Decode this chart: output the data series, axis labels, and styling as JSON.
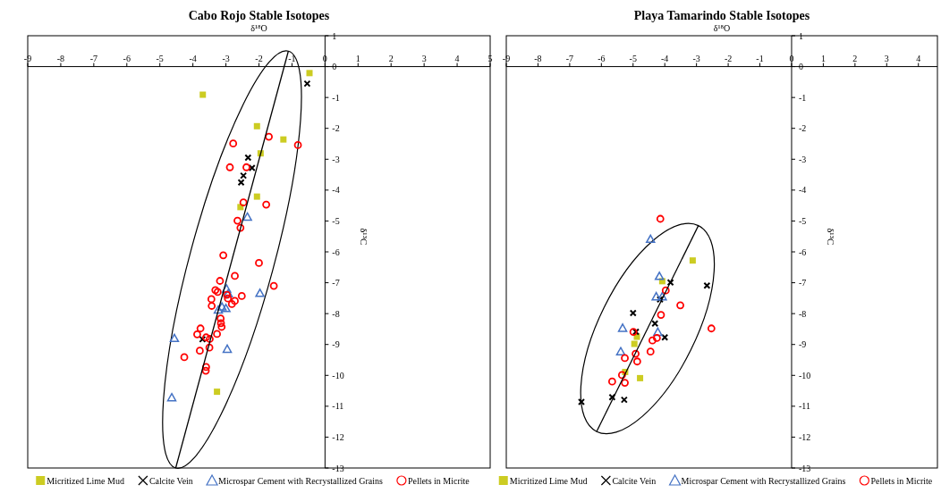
{
  "chart_data": [
    {
      "type": "scatter",
      "title": "Cabo Rojo Stable Isotopes",
      "xlabel": "δ¹⁸O",
      "ylabel": "δ¹³C",
      "xlim": [
        -9,
        5
      ],
      "ylim": [
        -13,
        1
      ],
      "xticks": [
        -9,
        -8,
        -7,
        -6,
        -5,
        -4,
        -3,
        -2,
        -1,
        0,
        1,
        2,
        3,
        4,
        5
      ],
      "yticks": [
        1,
        0,
        -1,
        -2,
        -3,
        -4,
        -5,
        -6,
        -7,
        -8,
        -9,
        -10,
        -11,
        -12,
        -13
      ],
      "legend": "bottom",
      "series": [
        {
          "name": "Micritized Lime Mud",
          "color": "#cccc22",
          "marker": "square",
          "x": [
            -0.47,
            -3.7,
            -2.06,
            -1.26,
            -1.95,
            -2.06,
            -2.56,
            -3.27
          ],
          "values": [
            -0.21,
            -0.91,
            -1.93,
            -2.36,
            -2.81,
            -4.21,
            -4.55,
            -10.53
          ]
        },
        {
          "name": "Calcite Vein",
          "color": "#000000",
          "marker": "cross",
          "x": [
            -0.54,
            -2.33,
            -2.21,
            -2.47,
            -2.54,
            -3.71
          ],
          "values": [
            -0.55,
            -2.95,
            -3.28,
            -3.53,
            -3.75,
            -8.83
          ]
        },
        {
          "name": "Microspar Cement with Recrystallized Grains",
          "color": "#4472c4",
          "marker": "triangle",
          "x": [
            -2.35,
            -2.98,
            -2.93,
            -1.97,
            -3.12,
            -3.0,
            -3.23,
            -4.56,
            -2.96,
            -4.64
          ],
          "values": [
            -4.87,
            -7.2,
            -7.35,
            -7.34,
            -7.78,
            -7.83,
            -7.88,
            -8.8,
            -9.15,
            -10.72
          ]
        },
        {
          "name": "Pellets in Micrite",
          "color": "#ff0000",
          "marker": "circle",
          "x": [
            -1.7,
            -2.78,
            -0.82,
            -2.88,
            -2.38,
            -2.47,
            -1.78,
            -2.65,
            -2.56,
            -3.08,
            -2.0,
            -2.73,
            -3.18,
            -3.32,
            -3.25,
            -2.52,
            -2.97,
            -2.73,
            -2.82,
            -2.94,
            -3.44,
            -3.43,
            -1.55,
            -3.16,
            -3.15,
            -3.13,
            -3.77,
            -3.87,
            -3.27,
            -3.6,
            -3.49,
            -3.79,
            -3.5,
            -4.26,
            -3.6,
            -3.61
          ],
          "values": [
            -2.27,
            -2.49,
            -2.54,
            -3.26,
            -3.26,
            -4.4,
            -4.47,
            -4.99,
            -5.22,
            -6.11,
            -6.36,
            -6.78,
            -6.94,
            -7.24,
            -7.3,
            -7.43,
            -7.39,
            -7.59,
            -7.69,
            -7.51,
            -7.53,
            -7.75,
            -7.1,
            -8.16,
            -8.31,
            -8.43,
            -8.48,
            -8.67,
            -8.66,
            -8.77,
            -8.82,
            -9.2,
            -9.1,
            -9.41,
            -9.73,
            -9.85
          ]
        },
        {
          "type": "line",
          "color": "#000000",
          "marker": "none",
          "line_style": "solid",
          "x": [
            -1.11,
            -4.52
          ],
          "values": [
            0.5,
            -13.0
          ]
        }
      ]
    },
    {
      "type": "scatter",
      "title": "Playa Tamarindo Stable Isotopes",
      "xlabel": "δ¹⁸O",
      "ylabel": "δ¹³C",
      "xlim": [
        -9,
        4.6
      ],
      "ylim": [
        -13,
        1
      ],
      "xticks": [
        -9,
        -8,
        -7,
        -6,
        -5,
        -4,
        -3,
        -2,
        -1,
        0,
        1,
        2,
        3,
        4
      ],
      "yticks": [
        1,
        0,
        -1,
        -2,
        -3,
        -4,
        -5,
        -6,
        -7,
        -8,
        -9,
        -10,
        -11,
        -12,
        -13
      ],
      "legend": "bottom",
      "series": [
        {
          "name": "Micritized Lime Mud",
          "color": "#cccc22",
          "marker": "square",
          "x": [
            -3.12,
            -4.08,
            -4.88,
            -4.96,
            -5.25,
            -4.78
          ],
          "values": [
            -6.28,
            -6.95,
            -8.75,
            -8.98,
            -9.89,
            -10.09
          ]
        },
        {
          "name": "Calcite Vein",
          "color": "#000000",
          "marker": "cross",
          "x": [
            -3.82,
            -2.67,
            -4.15,
            -5.0,
            -4.31,
            -4.91,
            -4.0,
            -6.63,
            -5.66,
            -5.28
          ],
          "values": [
            -6.99,
            -7.09,
            -7.54,
            -7.98,
            -8.32,
            -8.59,
            -8.77,
            -10.86,
            -10.71,
            -10.79
          ]
        },
        {
          "name": "Microspar Cement with Recrystallized Grains",
          "color": "#4472c4",
          "marker": "triangle",
          "x": [
            -4.45,
            -4.17,
            -4.27,
            -4.08,
            -5.33,
            -4.22,
            -5.39
          ],
          "values": [
            -5.59,
            -6.79,
            -7.45,
            -7.45,
            -8.47,
            -8.6,
            -9.23
          ]
        },
        {
          "name": "Pellets in Micrite",
          "color": "#ff0000",
          "marker": "circle",
          "x": [
            -4.14,
            -3.97,
            -3.51,
            -4.12,
            -2.53,
            -4.99,
            -4.25,
            -4.39,
            -4.92,
            -4.45,
            -5.26,
            -4.87,
            -5.35,
            -5.66,
            -5.26
          ],
          "values": [
            -4.93,
            -7.25,
            -7.73,
            -8.04,
            -8.48,
            -8.59,
            -8.79,
            -8.87,
            -9.3,
            -9.23,
            -9.44,
            -9.55,
            -9.99,
            -10.2,
            -10.24
          ]
        },
        {
          "type": "line",
          "color": "#000000",
          "marker": "none",
          "line_style": "solid",
          "x": [
            -2.94,
            -6.15
          ],
          "values": [
            -5.15,
            -11.82
          ]
        }
      ]
    }
  ]
}
